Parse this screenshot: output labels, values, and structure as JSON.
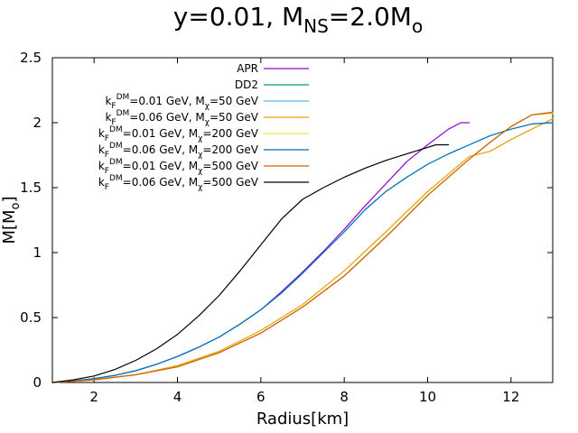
{
  "chart_data": {
    "type": "line",
    "title": {
      "prefix": "y=0.01, M",
      "sub1": "NS",
      "mid": "=2.0M",
      "sub2": "o"
    },
    "xlabel": "Radius[km]",
    "ylabel": {
      "main": "M[M",
      "sub": "o",
      "close": "]"
    },
    "xlim": [
      1,
      13
    ],
    "ylim": [
      0,
      2.5
    ],
    "xticks": [
      2,
      4,
      6,
      8,
      10,
      12
    ],
    "yticks": [
      {
        "value": 0,
        "label": "0"
      },
      {
        "value": 0.5,
        "label": "0.5"
      },
      {
        "value": 1,
        "label": "1"
      },
      {
        "value": 1.5,
        "label": "1.5"
      },
      {
        "value": 2,
        "label": "2"
      },
      {
        "value": 2.5,
        "label": "2.5"
      }
    ],
    "legend_position": "top-left",
    "series": [
      {
        "name": "APR",
        "label": {
          "text": "APR"
        },
        "color": "#9400d3",
        "points": [
          [
            1.0,
            0.0
          ],
          [
            1.5,
            0.012
          ],
          [
            2.0,
            0.03
          ],
          [
            2.5,
            0.055
          ],
          [
            3.0,
            0.09
          ],
          [
            3.5,
            0.14
          ],
          [
            4.0,
            0.2
          ],
          [
            4.5,
            0.27
          ],
          [
            5.0,
            0.35
          ],
          [
            5.5,
            0.45
          ],
          [
            6.0,
            0.56
          ],
          [
            6.5,
            0.7
          ],
          [
            7.0,
            0.85
          ],
          [
            7.5,
            1.01
          ],
          [
            8.0,
            1.18
          ],
          [
            8.5,
            1.36
          ],
          [
            9.0,
            1.53
          ],
          [
            9.5,
            1.7
          ],
          [
            10.0,
            1.83
          ],
          [
            10.5,
            1.95
          ],
          [
            10.8,
            2.0
          ],
          [
            11.0,
            2.0
          ]
        ]
      },
      {
        "name": "DD2",
        "label": {
          "text": "DD2"
        },
        "color": "#009e73",
        "points": [
          [
            1.0,
            0.0
          ],
          [
            2.0,
            0.02
          ],
          [
            3.0,
            0.06
          ],
          [
            4.0,
            0.12
          ],
          [
            5.0,
            0.23
          ],
          [
            6.0,
            0.38
          ],
          [
            7.0,
            0.58
          ],
          [
            8.0,
            0.82
          ],
          [
            9.0,
            1.12
          ],
          [
            10.0,
            1.44
          ],
          [
            11.0,
            1.72
          ],
          [
            11.5,
            1.85
          ],
          [
            12.0,
            1.97
          ],
          [
            12.5,
            2.06
          ],
          [
            13.0,
            2.08
          ]
        ]
      },
      {
        "name": "kF=0.01 GeV, Mchi=50 GeV",
        "label": {
          "k": "k",
          "ksub": "F",
          "ksup": "DM",
          "rest": "=0.01 GeV, M",
          "chi": "χ",
          "end": "=50 GeV"
        },
        "color": "#56b4e9",
        "points": [
          [
            1.0,
            0.0
          ],
          [
            1.5,
            0.012
          ],
          [
            2.0,
            0.03
          ],
          [
            2.5,
            0.055
          ],
          [
            3.0,
            0.09
          ],
          [
            3.5,
            0.14
          ],
          [
            4.0,
            0.2
          ],
          [
            4.5,
            0.27
          ],
          [
            5.0,
            0.35
          ],
          [
            5.5,
            0.45
          ],
          [
            6.0,
            0.56
          ],
          [
            6.5,
            0.69
          ],
          [
            7.0,
            0.84
          ],
          [
            7.5,
            1.0
          ],
          [
            8.0,
            1.16
          ],
          [
            8.5,
            1.33
          ],
          [
            9.0,
            1.47
          ],
          [
            9.5,
            1.58
          ],
          [
            10.0,
            1.68
          ],
          [
            10.5,
            1.76
          ],
          [
            11.0,
            1.83
          ],
          [
            11.5,
            1.9
          ],
          [
            12.0,
            1.95
          ],
          [
            12.5,
            1.99
          ],
          [
            13.0,
            2.0
          ]
        ]
      },
      {
        "name": "kF=0.06 GeV, Mchi=50 GeV",
        "label": {
          "k": "k",
          "ksub": "F",
          "ksup": "DM",
          "rest": "=0.06 GeV, M",
          "chi": "χ",
          "end": "=50 GeV"
        },
        "color": "#e69f00",
        "points": [
          [
            1.0,
            0.0
          ],
          [
            2.0,
            0.02
          ],
          [
            3.0,
            0.06
          ],
          [
            4.0,
            0.13
          ],
          [
            5.0,
            0.24
          ],
          [
            6.0,
            0.4
          ],
          [
            7.0,
            0.6
          ],
          [
            8.0,
            0.86
          ],
          [
            9.0,
            1.16
          ],
          [
            10.0,
            1.47
          ],
          [
            11.0,
            1.74
          ],
          [
            11.5,
            1.78
          ],
          [
            12.0,
            1.87
          ],
          [
            12.5,
            1.95
          ],
          [
            13.0,
            2.03
          ]
        ]
      },
      {
        "name": "kF=0.01 GeV, Mchi=200 GeV",
        "label": {
          "k": "k",
          "ksub": "F",
          "ksup": "DM",
          "rest": "=0.01 GeV, M",
          "chi": "χ",
          "end": "=200 GeV"
        },
        "color": "#f0e442",
        "points": [
          [
            1.0,
            0.0
          ],
          [
            2.0,
            0.02
          ],
          [
            3.0,
            0.06
          ],
          [
            4.0,
            0.12
          ],
          [
            5.0,
            0.23
          ],
          [
            6.0,
            0.38
          ],
          [
            7.0,
            0.58
          ],
          [
            8.0,
            0.82
          ],
          [
            9.0,
            1.12
          ],
          [
            10.0,
            1.44
          ],
          [
            11.0,
            1.72
          ],
          [
            11.5,
            1.85
          ],
          [
            12.0,
            1.97
          ],
          [
            12.5,
            2.06
          ],
          [
            13.0,
            2.07
          ]
        ]
      },
      {
        "name": "kF=0.06 GeV, Mchi=200 GeV",
        "label": {
          "k": "k",
          "ksub": "F",
          "ksup": "DM",
          "rest": "=0.06 GeV, M",
          "chi": "χ",
          "end": "=200 GeV"
        },
        "color": "#0072b2",
        "points": [
          [
            1.0,
            0.0
          ],
          [
            1.5,
            0.012
          ],
          [
            2.0,
            0.03
          ],
          [
            2.5,
            0.055
          ],
          [
            3.0,
            0.09
          ],
          [
            3.5,
            0.14
          ],
          [
            4.0,
            0.2
          ],
          [
            4.5,
            0.27
          ],
          [
            5.0,
            0.35
          ],
          [
            5.5,
            0.45
          ],
          [
            6.0,
            0.56
          ],
          [
            6.5,
            0.69
          ],
          [
            7.0,
            0.84
          ],
          [
            7.5,
            1.0
          ],
          [
            8.0,
            1.16
          ],
          [
            8.5,
            1.33
          ],
          [
            9.0,
            1.47
          ],
          [
            9.5,
            1.58
          ],
          [
            10.0,
            1.68
          ],
          [
            10.5,
            1.76
          ],
          [
            11.0,
            1.83
          ],
          [
            11.5,
            1.9
          ],
          [
            12.0,
            1.95
          ],
          [
            12.5,
            1.99
          ],
          [
            13.0,
            2.0
          ]
        ]
      },
      {
        "name": "kF=0.01 GeV, Mchi=500 GeV",
        "label": {
          "k": "k",
          "ksub": "F",
          "ksup": "DM",
          "rest": "=0.01 GeV, M",
          "chi": "χ",
          "end": "=500 GeV"
        },
        "color": "#d55e00",
        "points": [
          [
            1.0,
            0.0
          ],
          [
            2.0,
            0.02
          ],
          [
            3.0,
            0.06
          ],
          [
            4.0,
            0.12
          ],
          [
            5.0,
            0.23
          ],
          [
            6.0,
            0.38
          ],
          [
            7.0,
            0.58
          ],
          [
            8.0,
            0.82
          ],
          [
            9.0,
            1.12
          ],
          [
            10.0,
            1.44
          ],
          [
            11.0,
            1.72
          ],
          [
            11.5,
            1.85
          ],
          [
            12.0,
            1.97
          ],
          [
            12.5,
            2.06
          ],
          [
            13.0,
            2.08
          ]
        ]
      },
      {
        "name": "kF=0.06 GeV, Mchi=500 GeV",
        "label": {
          "k": "k",
          "ksub": "F",
          "ksup": "DM",
          "rest": "=0.06 GeV, M",
          "chi": "χ",
          "end": "=500 GeV"
        },
        "color": "#000000",
        "points": [
          [
            1.0,
            0.0
          ],
          [
            1.5,
            0.02
          ],
          [
            2.0,
            0.05
          ],
          [
            2.5,
            0.1
          ],
          [
            3.0,
            0.17
          ],
          [
            3.5,
            0.26
          ],
          [
            4.0,
            0.37
          ],
          [
            4.5,
            0.51
          ],
          [
            5.0,
            0.67
          ],
          [
            5.5,
            0.86
          ],
          [
            6.0,
            1.06
          ],
          [
            6.5,
            1.26
          ],
          [
            7.0,
            1.41
          ],
          [
            7.5,
            1.5
          ],
          [
            8.0,
            1.58
          ],
          [
            8.5,
            1.65
          ],
          [
            9.0,
            1.71
          ],
          [
            9.5,
            1.76
          ],
          [
            10.0,
            1.81
          ],
          [
            10.2,
            1.83
          ],
          [
            10.5,
            1.83
          ]
        ]
      }
    ]
  }
}
